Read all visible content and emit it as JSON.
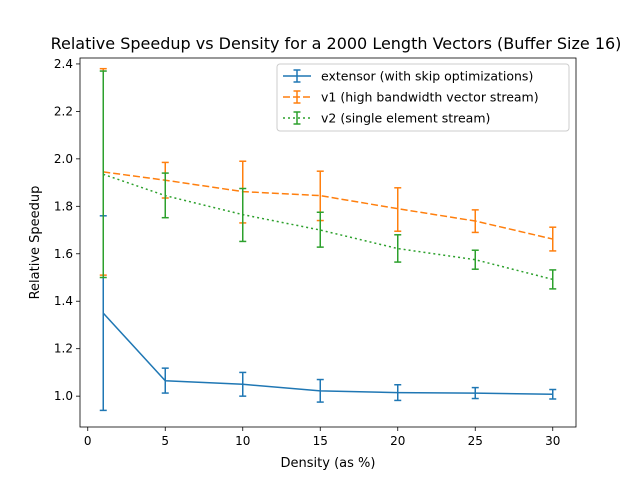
{
  "chart_data": {
    "type": "line",
    "title": "Relative Speedup vs Density for a 2000 Length Vectors (Buffer Size 16)",
    "xlabel": "Density (as %)",
    "ylabel": "Relative Speedup",
    "xlim": [
      -0.5,
      31.5
    ],
    "ylim": [
      0.87,
      2.425
    ],
    "xticks": [
      0,
      5,
      10,
      15,
      20,
      25,
      30
    ],
    "xtick_labels": [
      "0",
      "5",
      "10",
      "15",
      "20",
      "25",
      "30"
    ],
    "yticks": [
      1.0,
      1.2,
      1.4,
      1.6,
      1.8,
      2.0,
      2.2,
      2.4
    ],
    "ytick_labels": [
      "1.0",
      "1.2",
      "1.4",
      "1.6",
      "1.8",
      "2.0",
      "2.2",
      "2.4"
    ],
    "grid": false,
    "legend_position": "top-right",
    "x": [
      1,
      5,
      10,
      15,
      20,
      25,
      30
    ],
    "series": [
      {
        "name": "extensor (with skip optimizations)",
        "color": "#1f77b4",
        "linestyle": "solid",
        "values": [
          1.35,
          1.065,
          1.05,
          1.022,
          1.015,
          1.013,
          1.008
        ],
        "err_low": [
          0.94,
          1.013,
          1.0,
          0.975,
          0.982,
          0.99,
          0.988
        ],
        "err_high": [
          1.76,
          1.118,
          1.1,
          1.07,
          1.048,
          1.036,
          1.028
        ]
      },
      {
        "name": "v1 (high bandwidth vector stream)",
        "color": "#ff7f0e",
        "linestyle": "dashed",
        "values": [
          1.945,
          1.91,
          1.862,
          1.845,
          1.79,
          1.738,
          1.662
        ],
        "err_low": [
          1.51,
          1.835,
          1.73,
          1.74,
          1.695,
          1.69,
          1.612
        ],
        "err_high": [
          2.38,
          1.985,
          1.99,
          1.948,
          1.878,
          1.785,
          1.712
        ]
      },
      {
        "name": "v2 (single element stream)",
        "color": "#2ca02c",
        "linestyle": "dotted",
        "values": [
          1.935,
          1.845,
          1.765,
          1.7,
          1.622,
          1.575,
          1.492
        ],
        "err_low": [
          1.5,
          1.752,
          1.652,
          1.628,
          1.565,
          1.535,
          1.452
        ],
        "err_high": [
          2.37,
          1.94,
          1.875,
          1.775,
          1.68,
          1.615,
          1.532
        ]
      }
    ]
  }
}
